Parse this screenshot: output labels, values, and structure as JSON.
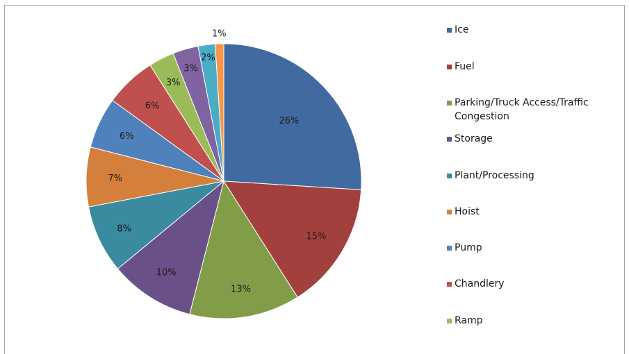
{
  "chart_data": {
    "type": "pie",
    "title": "",
    "start_angle_deg": 90,
    "direction": "clockwise",
    "legend_position": "right",
    "slices": [
      {
        "label": "Ice",
        "value": 26,
        "value_label": "26%",
        "color": "#416aa0"
      },
      {
        "label": "Fuel",
        "value": 15,
        "value_label": "15%",
        "color": "#a1403d"
      },
      {
        "label": "Parking/Truck Access/Traffic Congestion",
        "value": 13,
        "value_label": "13%",
        "color": "#819d47"
      },
      {
        "label": "Storage",
        "value": 10,
        "value_label": "10%",
        "color": "#6a5088"
      },
      {
        "label": "Plant/Processing",
        "value": 8,
        "value_label": "8%",
        "color": "#3a8aa0"
      },
      {
        "label": "Hoist",
        "value": 7,
        "value_label": "7%",
        "color": "#d4803c"
      },
      {
        "label": "Pump",
        "value": 6,
        "value_label": "6%",
        "color": "#4f81bd"
      },
      {
        "label": "Chandlery",
        "value": 6,
        "value_label": "6%",
        "color": "#c0504d"
      },
      {
        "label": "Ramp",
        "value": 3,
        "value_label": "3%",
        "color": "#9bbb59"
      },
      {
        "label": "",
        "value": 3,
        "value_label": "3%",
        "color": "#8064a2"
      },
      {
        "label": "",
        "value": 2,
        "value_label": "2%",
        "color": "#4bacc6"
      },
      {
        "label": "",
        "value": 1,
        "value_label": "1%",
        "color": "#f79646"
      }
    ],
    "legend": [
      {
        "label": "Ice",
        "color": "#416aa0"
      },
      {
        "label": "Fuel",
        "color": "#a1403d"
      },
      {
        "label": "Parking/Truck Access/Traffic Congestion",
        "color": "#819d47"
      },
      {
        "label": "Storage",
        "color": "#6a5088"
      },
      {
        "label": "Plant/Processing",
        "color": "#3a8aa0"
      },
      {
        "label": "Hoist",
        "color": "#d4803c"
      },
      {
        "label": "Pump",
        "color": "#4f81bd"
      },
      {
        "label": "Chandlery",
        "color": "#c0504d"
      },
      {
        "label": "Ramp",
        "color": "#9bbb59"
      }
    ]
  }
}
